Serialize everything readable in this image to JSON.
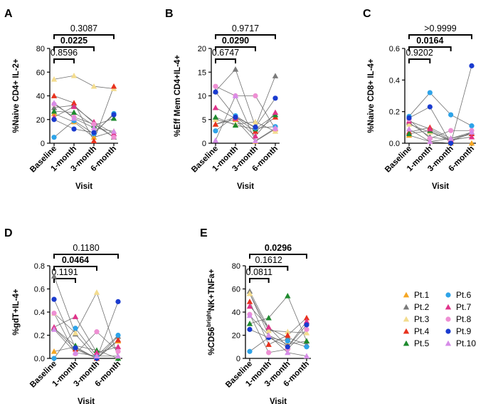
{
  "legend": [
    {
      "id": "pt1",
      "label": "Pt.1",
      "color": "#F5A623",
      "shape": "triangle"
    },
    {
      "id": "pt2",
      "label": "Pt.2",
      "color": "#7A7A7A",
      "shape": "triangle"
    },
    {
      "id": "pt3",
      "label": "Pt.3",
      "color": "#F3DC8E",
      "shape": "triangle"
    },
    {
      "id": "pt4",
      "label": "Pt.4",
      "color": "#E8321E",
      "shape": "triangle"
    },
    {
      "id": "pt5",
      "label": "Pt.5",
      "color": "#1E8A2E",
      "shape": "triangle"
    },
    {
      "id": "pt6",
      "label": "Pt.6",
      "color": "#2EA3E8",
      "shape": "circle"
    },
    {
      "id": "pt7",
      "label": "Pt.7",
      "color": "#E0338A",
      "shape": "triangle"
    },
    {
      "id": "pt8",
      "label": "Pt.8",
      "color": "#EE8FD3",
      "shape": "circle"
    },
    {
      "id": "pt9",
      "label": "Pt.9",
      "color": "#1A3BCF",
      "shape": "circle"
    },
    {
      "id": "pt10",
      "label": "Pt.10",
      "color": "#D68CE8",
      "shape": "triangle"
    }
  ],
  "chart_data": [
    {
      "panel": "A",
      "type": "scatter",
      "ylabel": "%Naive CD4+ IL-2+",
      "xlabel": "Visit",
      "categories": [
        "Baseline",
        "1-month",
        "3-month",
        "6-month"
      ],
      "ylim": [
        0,
        80
      ],
      "yticks": [
        "0",
        "20",
        "40",
        "60",
        "80"
      ],
      "brackets": [
        {
          "to": 1,
          "label": "0.8596",
          "bold": false
        },
        {
          "to": 2,
          "label": "0.0225",
          "bold": true
        },
        {
          "to": 3,
          "label": "0.3087",
          "bold": false
        }
      ],
      "series": [
        {
          "pt": "pt1",
          "values": [
            25,
            18,
            5,
            10
          ]
        },
        {
          "pt": "pt2",
          "values": [
            30,
            32,
            17,
            5
          ]
        },
        {
          "pt": "pt3",
          "values": [
            54,
            57,
            48,
            46
          ]
        },
        {
          "pt": "pt4",
          "values": [
            40,
            34,
            2,
            48
          ]
        },
        {
          "pt": "pt5",
          "values": [
            27,
            26,
            15,
            21
          ]
        },
        {
          "pt": "pt6",
          "values": [
            5,
            19,
            8,
            25
          ]
        },
        {
          "pt": "pt7",
          "values": [
            22,
            31,
            18,
            8
          ]
        },
        {
          "pt": "pt8",
          "values": [
            33,
            22,
            16,
            5
          ]
        },
        {
          "pt": "pt9",
          "values": [
            20,
            12,
            9,
            24
          ]
        },
        {
          "pt": "pt10",
          "values": [
            34,
            21,
            13,
            10
          ]
        }
      ]
    },
    {
      "panel": "B",
      "type": "scatter",
      "ylabel": "%Eff Mem CD4+IL-4+",
      "xlabel": "Visit",
      "categories": [
        "Baseline",
        "1-month",
        "3-month",
        "6-month"
      ],
      "ylim": [
        0,
        20
      ],
      "yticks": [
        "0",
        "5",
        "10",
        "15",
        "20"
      ],
      "brackets": [
        {
          "to": 1,
          "label": "0.6747",
          "bold": false
        },
        {
          "to": 2,
          "label": "0.0290",
          "bold": true
        },
        {
          "to": 3,
          "label": "0.9717",
          "bold": false
        }
      ],
      "series": [
        {
          "pt": "pt1",
          "values": [
            4,
            5,
            0.4,
            3
          ]
        },
        {
          "pt": "pt2",
          "values": [
            11,
            15.6,
            3.5,
            14.2
          ]
        },
        {
          "pt": "pt3",
          "values": [
            5,
            4,
            4.5,
            2.5
          ]
        },
        {
          "pt": "pt4",
          "values": [
            4,
            5.5,
            2.5,
            5.5
          ]
        },
        {
          "pt": "pt5",
          "values": [
            5.5,
            3.8,
            3,
            6
          ]
        },
        {
          "pt": "pt6",
          "values": [
            2.6,
            5.8,
            3.2,
            3.5
          ]
        },
        {
          "pt": "pt7",
          "values": [
            7.5,
            5.2,
            1.5,
            6.5
          ]
        },
        {
          "pt": "pt8",
          "values": [
            12,
            10,
            10,
            3
          ]
        },
        {
          "pt": "pt9",
          "values": [
            10.8,
            5.5,
            3.4,
            9.5
          ]
        },
        {
          "pt": "pt10",
          "values": [
            0.6,
            10,
            0.5,
            3.2
          ]
        }
      ]
    },
    {
      "panel": "C",
      "type": "scatter",
      "ylabel": "%Naive CD8+ IL-4+",
      "xlabel": "Visit",
      "categories": [
        "Baseline",
        "1-month",
        "3-month",
        "6-month"
      ],
      "ylim": [
        0,
        0.6
      ],
      "yticks": [
        "0.0",
        "0.2",
        "0.4",
        "0.6"
      ],
      "brackets": [
        {
          "to": 1,
          "label": "0.9202",
          "bold": false
        },
        {
          "to": 2,
          "label": "0.0164",
          "bold": true
        },
        {
          "to": 3,
          "label": ">0.9999",
          "bold": false
        }
      ],
      "series": [
        {
          "pt": "pt1",
          "values": [
            0.05,
            0.01,
            0,
            0
          ]
        },
        {
          "pt": "pt2",
          "values": [
            0.13,
            0.04,
            0.02,
            0.06
          ]
        },
        {
          "pt": "pt3",
          "values": [
            0.12,
            0.07,
            0.02,
            0.04
          ]
        },
        {
          "pt": "pt4",
          "values": [
            0.07,
            0.1,
            0.03,
            0.06
          ]
        },
        {
          "pt": "pt5",
          "values": [
            0.06,
            0.08,
            0.01,
            0.07
          ]
        },
        {
          "pt": "pt6",
          "values": [
            0.17,
            0.32,
            0.18,
            0.11
          ]
        },
        {
          "pt": "pt7",
          "values": [
            0.14,
            0.09,
            0.02,
            0.04
          ]
        },
        {
          "pt": "pt8",
          "values": [
            0.15,
            0.03,
            0.08,
            0.08
          ]
        },
        {
          "pt": "pt9",
          "values": [
            0.16,
            0.23,
            0,
            0.49
          ]
        },
        {
          "pt": "pt10",
          "values": [
            0.09,
            0.01,
            0.03,
            0.07
          ]
        }
      ]
    },
    {
      "panel": "D",
      "type": "scatter",
      "ylabel": "%gdT+IL-4+",
      "xlabel": "Visit",
      "categories": [
        "Baseline",
        "1-month",
        "3-month",
        "6-month"
      ],
      "ylim": [
        0,
        0.8
      ],
      "yticks": [
        "0.0",
        "0.2",
        "0.4",
        "0.6",
        "0.8"
      ],
      "brackets": [
        {
          "to": 1,
          "label": "0.1191",
          "bold": false
        },
        {
          "to": 2,
          "label": "0.0464",
          "bold": true
        },
        {
          "to": 3,
          "label": "0.1180",
          "bold": false
        }
      ],
      "series": [
        {
          "pt": "pt1",
          "values": [
            0.06,
            0.1,
            0,
            0.15
          ]
        },
        {
          "pt": "pt2",
          "values": [
            0.71,
            0.21,
            0,
            0.19
          ]
        },
        {
          "pt": "pt3",
          "values": [
            0.39,
            0.22,
            0.57,
            0.01
          ]
        },
        {
          "pt": "pt4",
          "values": [
            0.26,
            0.08,
            0,
            0.16
          ]
        },
        {
          "pt": "pt5",
          "values": [
            0.26,
            0.11,
            0.07,
            0
          ]
        },
        {
          "pt": "pt6",
          "values": [
            0,
            0.26,
            0.02,
            0.2
          ]
        },
        {
          "pt": "pt7",
          "values": [
            0.27,
            0.36,
            0.05,
            0.1
          ]
        },
        {
          "pt": "pt8",
          "values": [
            0.39,
            0.04,
            0.23,
            0.06
          ]
        },
        {
          "pt": "pt9",
          "values": [
            0.51,
            0.09,
            0,
            0.49
          ]
        },
        {
          "pt": "pt10",
          "values": [
            0.25,
            0.05,
            0.02,
            0.02
          ]
        }
      ]
    },
    {
      "panel": "E",
      "type": "scatter",
      "ylabel": "%CD56brightNK+TNFa+",
      "ylabel_main": "%CD56",
      "ylabel_sup": "bright",
      "ylabel_tail": "NK+TNFa+",
      "xlabel": "Visit",
      "categories": [
        "Baseline",
        "1-month",
        "3-month",
        "6-month"
      ],
      "ylim": [
        0,
        80
      ],
      "yticks": [
        "0",
        "20",
        "40",
        "60",
        "80"
      ],
      "brackets": [
        {
          "to": 1,
          "label": "0.0811",
          "bold": false
        },
        {
          "to": 2,
          "label": "0.1612",
          "bold": false
        },
        {
          "to": 3,
          "label": "0.0296",
          "bold": true
        }
      ],
      "series": [
        {
          "pt": "pt1",
          "values": [
            56,
            20,
            12,
            15
          ]
        },
        {
          "pt": "pt2",
          "values": [
            58,
            26,
            18,
            12
          ]
        },
        {
          "pt": "pt3",
          "values": [
            56,
            24,
            23,
            22
          ]
        },
        {
          "pt": "pt4",
          "values": [
            49,
            12,
            20,
            35
          ]
        },
        {
          "pt": "pt5",
          "values": [
            30,
            35,
            54,
            15
          ]
        },
        {
          "pt": "pt6",
          "values": [
            6,
            18,
            15,
            10
          ]
        },
        {
          "pt": "pt7",
          "values": [
            45,
            27,
            10,
            32
          ]
        },
        {
          "pt": "pt8",
          "values": [
            38,
            5,
            8,
            25
          ]
        },
        {
          "pt": "pt9",
          "values": [
            25,
            18,
            10,
            29
          ]
        },
        {
          "pt": "pt10",
          "values": [
            37,
            20,
            5,
            2
          ]
        }
      ]
    }
  ]
}
